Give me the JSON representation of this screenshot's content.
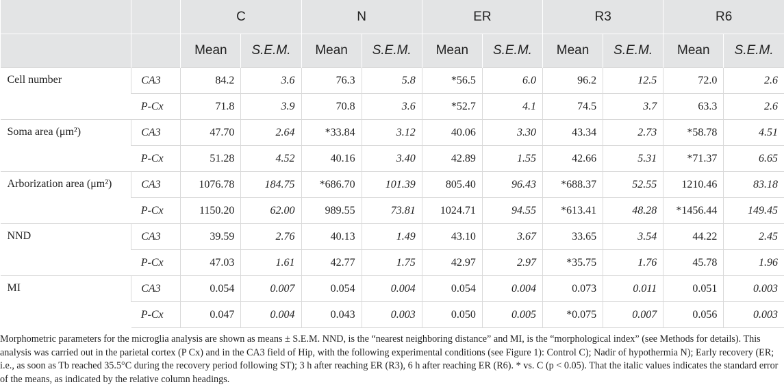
{
  "table": {
    "groups": [
      "C",
      "N",
      "ER",
      "R3",
      "R6"
    ],
    "mean_label": "Mean",
    "sem_label": "S.E.M.",
    "rows": [
      {
        "param": "Cell number",
        "region": "CA3",
        "values": [
          "84.2",
          "3.6",
          "76.3",
          "5.8",
          "*56.5",
          "6.0",
          "96.2",
          "12.5",
          "72.0",
          "2.6"
        ]
      },
      {
        "param": "",
        "region": "P-Cx",
        "values": [
          "71.8",
          "3.9",
          "70.8",
          "3.6",
          "*52.7",
          "4.1",
          "74.5",
          "3.7",
          "63.3",
          "2.6"
        ]
      },
      {
        "param": "Soma area (μm²)",
        "region": "CA3",
        "values": [
          "47.70",
          "2.64",
          "*33.84",
          "3.12",
          "40.06",
          "3.30",
          "43.34",
          "2.73",
          "*58.78",
          "4.51"
        ]
      },
      {
        "param": "",
        "region": "P-Cx",
        "values": [
          "51.28",
          "4.52",
          "40.16",
          "3.40",
          "42.89",
          "1.55",
          "42.66",
          "5.31",
          "*71.37",
          "6.65"
        ]
      },
      {
        "param": "Arborization area (μm²)",
        "region": "CA3",
        "values": [
          "1076.78",
          "184.75",
          "*686.70",
          "101.39",
          "805.40",
          "96.43",
          "*688.37",
          "52.55",
          "1210.46",
          "83.18"
        ]
      },
      {
        "param": "",
        "region": "P-Cx",
        "values": [
          "1150.20",
          "62.00",
          "989.55",
          "73.81",
          "1024.71",
          "94.55",
          "*613.41",
          "48.28",
          "*1456.44",
          "149.45"
        ]
      },
      {
        "param": "NND",
        "region": "CA3",
        "values": [
          "39.59",
          "2.76",
          "40.13",
          "1.49",
          "43.10",
          "3.67",
          "33.65",
          "3.54",
          "44.22",
          "2.45"
        ]
      },
      {
        "param": "",
        "region": "P-Cx",
        "values": [
          "47.03",
          "1.61",
          "42.77",
          "1.75",
          "42.97",
          "2.97",
          "*35.75",
          "1.76",
          "45.78",
          "1.96"
        ]
      },
      {
        "param": "MI",
        "region": "CA3",
        "values": [
          "0.054",
          "0.007",
          "0.054",
          "0.004",
          "0.054",
          "0.004",
          "0.073",
          "0.011",
          "0.051",
          "0.003"
        ]
      },
      {
        "param": "",
        "region": "P-Cx",
        "values": [
          "0.047",
          "0.004",
          "0.043",
          "0.003",
          "0.050",
          "0.005",
          "*0.075",
          "0.007",
          "0.056",
          "0.003"
        ]
      }
    ]
  },
  "footnote": "Morphometric parameters for the microglia analysis are shown as means ± S.E.M. NND, is the “nearest neighboring distance” and MI, is the “morphological index” (see Methods for details). This analysis was carried out in the parietal cortex (P Cx) and in the CA3 field of Hip, with the following experimental conditions (see Figure 1): Control C); Nadir of hypothermia N); Early recovery (ER; i.e., as soon as Tb reached 35.5°C during the recovery period following ST); 3 h after reaching ER (R3), 6 h after reaching ER (R6). * vs. C (p < 0.05). That the italic values indicates the standard error of the means, as indicated by the relative column headings."
}
